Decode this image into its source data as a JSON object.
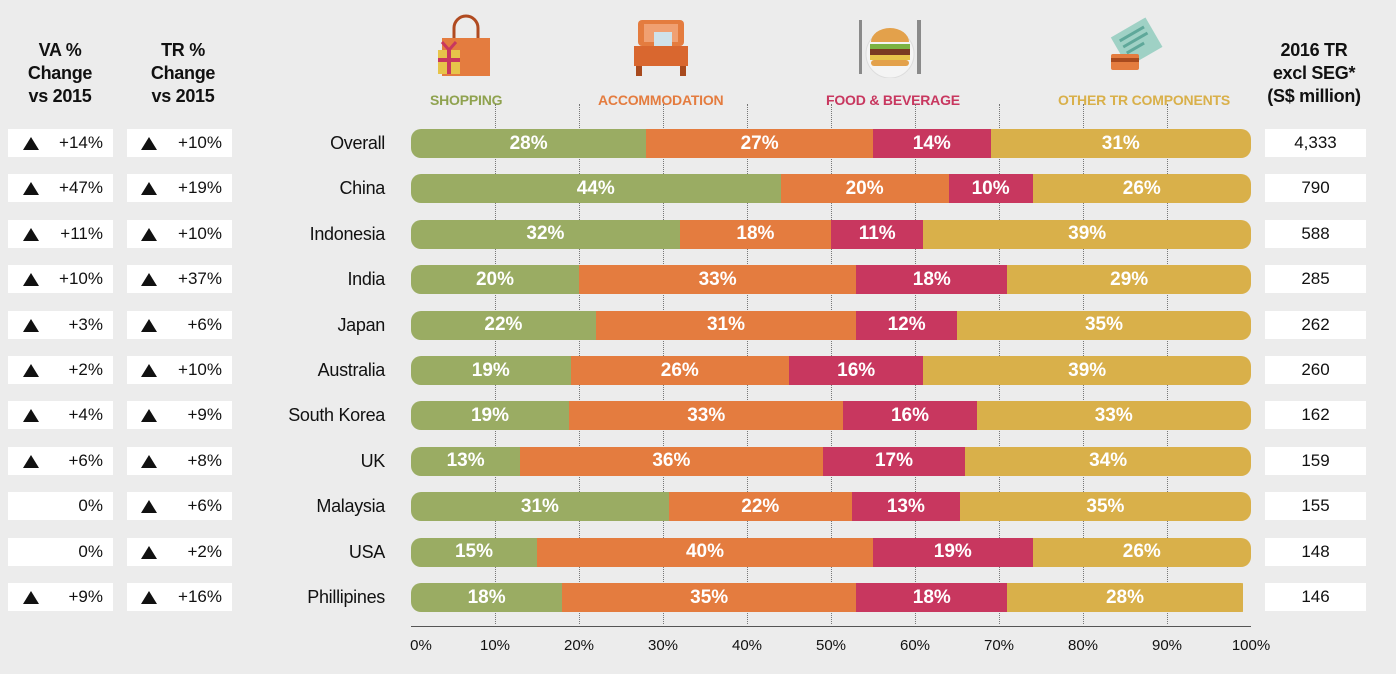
{
  "headers": {
    "va": [
      "VA %",
      "Change",
      "vs 2015"
    ],
    "tr": [
      "TR %",
      "Change",
      "vs 2015"
    ],
    "total": [
      "2016 TR",
      "excl SEG*",
      "(S$ million)"
    ]
  },
  "colors": {
    "shopping": "#9aac63",
    "accommodation": "#e47c3f",
    "food": "#c8375f",
    "other": "#d9b04a"
  },
  "rows": [
    {
      "country": "Overall",
      "va": "+14%",
      "va_up": true,
      "tr": "+10%",
      "tr_up": true,
      "total": "4,333"
    },
    {
      "country": "China",
      "va": "+47%",
      "va_up": true,
      "tr": "+19%",
      "tr_up": true,
      "total": "790"
    },
    {
      "country": "Indonesia",
      "va": "+11%",
      "va_up": true,
      "tr": "+10%",
      "tr_up": true,
      "total": "588"
    },
    {
      "country": "India",
      "va": "+10%",
      "va_up": true,
      "tr": "+37%",
      "tr_up": true,
      "total": "285"
    },
    {
      "country": "Japan",
      "va": "+3%",
      "va_up": true,
      "tr": "+6%",
      "tr_up": true,
      "total": "262"
    },
    {
      "country": "Australia",
      "va": "+2%",
      "va_up": true,
      "tr": "+10%",
      "tr_up": true,
      "total": "260"
    },
    {
      "country": "South Korea",
      "va": "+4%",
      "va_up": true,
      "tr": "+9%",
      "tr_up": true,
      "total": "162"
    },
    {
      "country": "UK",
      "va": "+6%",
      "va_up": true,
      "tr": "+8%",
      "tr_up": true,
      "total": "159"
    },
    {
      "country": "Malaysia",
      "va": "0%",
      "va_up": false,
      "tr": "+6%",
      "tr_up": true,
      "total": "155"
    },
    {
      "country": "USA",
      "va": "0%",
      "va_up": false,
      "tr": "+2%",
      "tr_up": true,
      "total": "148"
    },
    {
      "country": "Phillipines",
      "va": "+9%",
      "va_up": true,
      "tr": "+16%",
      "tr_up": true,
      "total": "146"
    }
  ],
  "chart_data": {
    "type": "bar",
    "stacked": true,
    "orientation": "horizontal",
    "categories": [
      "Overall",
      "China",
      "Indonesia",
      "India",
      "Japan",
      "Australia",
      "South Korea",
      "UK",
      "Malaysia",
      "USA",
      "Phillipines"
    ],
    "series": [
      {
        "name": "SHOPPING",
        "values": [
          28,
          44,
          32,
          20,
          22,
          19,
          19,
          13,
          31,
          15,
          18
        ]
      },
      {
        "name": "ACCOMMODATION",
        "values": [
          27,
          20,
          18,
          33,
          31,
          26,
          33,
          36,
          22,
          40,
          35
        ]
      },
      {
        "name": "FOOD & BEVERAGE",
        "values": [
          14,
          10,
          11,
          18,
          12,
          16,
          16,
          17,
          13,
          19,
          18
        ]
      },
      {
        "name": "OTHER TR COMPONENTS",
        "values": [
          31,
          26,
          39,
          29,
          35,
          39,
          33,
          34,
          35,
          26,
          28
        ]
      }
    ],
    "xticks": [
      "0%",
      "10%",
      "20%",
      "30%",
      "40%",
      "50%",
      "60%",
      "70%",
      "80%",
      "90%",
      "100%"
    ],
    "xlim": [
      0,
      100
    ],
    "grid": true,
    "legend": "top"
  }
}
